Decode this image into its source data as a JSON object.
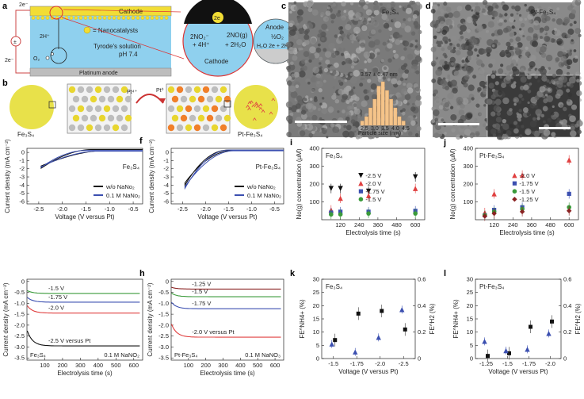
{
  "panel_labels": [
    "a",
    "b",
    "c",
    "d",
    "e",
    "f",
    "g",
    "h",
    "i",
    "j",
    "k",
    "l"
  ],
  "panel_a": {
    "cathode": "Cathode",
    "electron_top": "2e⁻",
    "electron_bottom": "2e⁻",
    "nanocatalysts": "= Nanocatalysts",
    "tyrode_1": "Tyrode's solution",
    "tyrode_2": "pH 7.4",
    "anode_bar": "Platinum anode",
    "h_label": "2H⁺",
    "o2_label": "O₂",
    "zoom_e": "2e",
    "zoom_left": "2NO₂⁻",
    "zoom_left2": "+ 4H⁺",
    "zoom_right": "2NO(g)",
    "zoom_right2": "+ 2H₂O",
    "zoom_cathode": "Cathode",
    "anode_title": "Anode",
    "anode_r1": "½O₂",
    "anode_r2": "H₂O  2e + 2H⁺"
  },
  "panel_b": {
    "left_label": "Fe₃S₄",
    "right_label": "Pt-Fe₃S₄",
    "arrow_top_left": "Pt⁴⁺",
    "arrow_top_right": "Pt⁰"
  },
  "panel_c": {
    "label": "Fe₃S₄",
    "size_text": "3.57 ± 0.47 nm",
    "hist_xlabel": "Particle size (nm)",
    "hist_ticks": [
      "2.5",
      "3.0",
      "3.5",
      "4.0",
      "4.5"
    ],
    "hist_values": [
      1,
      2,
      4,
      6,
      9,
      10,
      8,
      6,
      4,
      2,
      1
    ]
  },
  "panel_d": {
    "label": "Pt-Fe₃S₄"
  },
  "panel_e": {
    "sample": "Fe₃S₄",
    "ylabel": "Current density (mA cm⁻²)",
    "xlabel": "Voltage (V versus Pt)",
    "xticks": [
      "-2.5",
      "-2.0",
      "-1.5",
      "-1.0",
      "-0.5"
    ],
    "yticks": [
      "0",
      "-1",
      "-2",
      "-3",
      "-4",
      "-5",
      "-6"
    ],
    "legend": [
      "w/o NaNo₂",
      "0.1 M NaNo₂"
    ],
    "colors": {
      "black": "#111111",
      "blue": "#3b4fb0"
    }
  },
  "panel_f": {
    "sample": "Pt-Fe₃S₄",
    "ylabel": "Current density (mA cm⁻²)",
    "xlabel": "Voltage (V versus Pt)",
    "xticks": [
      "-2.5",
      "-2.0",
      "-1.5",
      "-1.0",
      "-0.5"
    ],
    "yticks": [
      "0",
      "-1",
      "-2",
      "-3",
      "-4",
      "-5",
      "-6"
    ],
    "legend": [
      "w/o NaNo₂",
      "0.1 M NaNo₂"
    ]
  },
  "panel_g": {
    "sample": "Fe₃S₄",
    "condition": "0.1 M NaNO₂",
    "ylabel": "Current density (mA cm⁻²)",
    "xlabel": "Electrolysis time (s)",
    "xticks": [
      "100",
      "200",
      "300",
      "400",
      "500",
      "600"
    ],
    "yticks": [
      "0",
      "-0.5",
      "-1.0",
      "-1.5",
      "-2.0",
      "-2.5",
      "-3.0",
      "-3.5"
    ],
    "series": [
      {
        "name": "-1.5 V",
        "color": "#3a9a3a",
        "value": -0.55
      },
      {
        "name": "-1.75 V",
        "color": "#3b4fb0",
        "value": -0.95
      },
      {
        "name": "-2.0 V",
        "color": "#e04040",
        "value": -1.45
      },
      {
        "name": "-2.5 V versus Pt",
        "color": "#111111",
        "value": -2.95
      }
    ]
  },
  "panel_h": {
    "sample": "Pt-Fe₃S₄",
    "condition": "0.1 M NaNO₃",
    "ylabel": "Current density (mA cm⁻²)",
    "xlabel": "Electrolysis time (s)",
    "xticks": [
      "100",
      "200",
      "300",
      "400",
      "500",
      "600"
    ],
    "yticks": [
      "0",
      "-0.5",
      "-1.0",
      "-1.5",
      "-2.0",
      "-2.5",
      "-3.0",
      "-3.5"
    ],
    "series": [
      {
        "name": "-1.25 V",
        "color": "#8b2323",
        "value": -0.35
      },
      {
        "name": "-1.5 V",
        "color": "#3a9a3a",
        "value": -0.7
      },
      {
        "name": "-1.75 V",
        "color": "#3b4fb0",
        "value": -1.25
      },
      {
        "name": "-2.0 V versus Pt",
        "color": "#e04040",
        "value": -2.55
      }
    ]
  },
  "panel_i": {
    "sample": "Fe₃S₄",
    "ylabel": "No(g) concentration (μM)",
    "xlabel": "Electrolysis time (s)",
    "xticks": [
      "120",
      "240",
      "360",
      "480",
      "600"
    ],
    "yticks": [
      "100",
      "200",
      "300",
      "400"
    ],
    "legend": [
      "-2.5 V",
      "-2.0 V",
      "-1.75 V",
      "-1.5 V"
    ],
    "series": [
      {
        "name": "-2.5 V",
        "color": "#111111",
        "marker": "tri-down",
        "points": [
          [
            60,
            175
          ],
          [
            120,
            175
          ],
          [
            300,
            160
          ],
          [
            600,
            240
          ]
        ]
      },
      {
        "name": "-2.0 V",
        "color": "#e04040",
        "marker": "tri-up",
        "points": [
          [
            60,
            55
          ],
          [
            120,
            120
          ],
          [
            300,
            135
          ],
          [
            600,
            175
          ]
        ]
      },
      {
        "name": "-1.75 V",
        "color": "#3b4fb0",
        "marker": "square",
        "points": [
          [
            60,
            40
          ],
          [
            120,
            45
          ],
          [
            300,
            45
          ],
          [
            600,
            50
          ]
        ]
      },
      {
        "name": "-1.5 V",
        "color": "#3a9a3a",
        "marker": "circle",
        "points": [
          [
            60,
            30
          ],
          [
            120,
            30
          ],
          [
            300,
            35
          ],
          [
            600,
            35
          ]
        ]
      }
    ]
  },
  "panel_j": {
    "sample": "Pt-Fe₃S₄",
    "ylabel": "No(g) concentration (μM)",
    "xlabel": "Electrolysis time (s)",
    "xticks": [
      "120",
      "240",
      "360",
      "480",
      "600"
    ],
    "yticks": [
      "100",
      "200",
      "300",
      "400"
    ],
    "legend": [
      "-2.0 V",
      "-1.75 V",
      "-1.5 V",
      "-1.25 V"
    ],
    "series": [
      {
        "name": "-2.0 V",
        "color": "#e04040",
        "marker": "tri-up",
        "points": [
          [
            60,
            40
          ],
          [
            120,
            145
          ],
          [
            300,
            250
          ],
          [
            600,
            335
          ]
        ]
      },
      {
        "name": "-1.75 V",
        "color": "#3b4fb0",
        "marker": "square",
        "points": [
          [
            60,
            25
          ],
          [
            120,
            55
          ],
          [
            300,
            70
          ],
          [
            600,
            145
          ]
        ]
      },
      {
        "name": "-1.5 V",
        "color": "#3a9a3a",
        "marker": "circle",
        "points": [
          [
            60,
            25
          ],
          [
            120,
            45
          ],
          [
            300,
            60
          ],
          [
            600,
            70
          ]
        ]
      },
      {
        "name": "-1.25 V",
        "color": "#8b2323",
        "marker": "diamond",
        "points": [
          [
            60,
            20
          ],
          [
            120,
            35
          ],
          [
            300,
            45
          ],
          [
            600,
            50
          ]
        ]
      }
    ]
  },
  "panel_k": {
    "sample": "Fe₃S₄",
    "ylabel_left": "FE^NH4+ (%)",
    "ylabel_right": "FE^H2 (%)",
    "xlabel": "Voltage (V versus Pt)",
    "xticks": [
      "-1.5",
      "-1.75",
      "-2.0",
      "-2.5"
    ],
    "yticks_left": [
      "0",
      "5",
      "10",
      "15",
      "20",
      "25",
      "30"
    ],
    "yticks_right": [
      "0",
      "0.2",
      "0.4",
      "0.6"
    ],
    "black_points": [
      7,
      17,
      18,
      11
    ],
    "blue_points": [
      0.11,
      0.05,
      0.16,
      0.37
    ]
  },
  "panel_l": {
    "sample": "Pt-Fe₃S₄",
    "ylabel_left": "FE^NH4+ (%)",
    "ylabel_right": "FE^H2 (%)",
    "xlabel": "Voltage (V versus Pt)",
    "xticks": [
      "-1.25",
      "-1.5",
      "-1.75",
      "-2.0"
    ],
    "yticks_left": [
      "0",
      "5",
      "10",
      "15",
      "20",
      "25",
      "30"
    ],
    "yticks_right": [
      "0",
      "0.2",
      "0.4",
      "0.6"
    ],
    "black_points": [
      1,
      2,
      12,
      14
    ],
    "blue_points": [
      0.13,
      0.06,
      0.07,
      0.19
    ]
  }
}
